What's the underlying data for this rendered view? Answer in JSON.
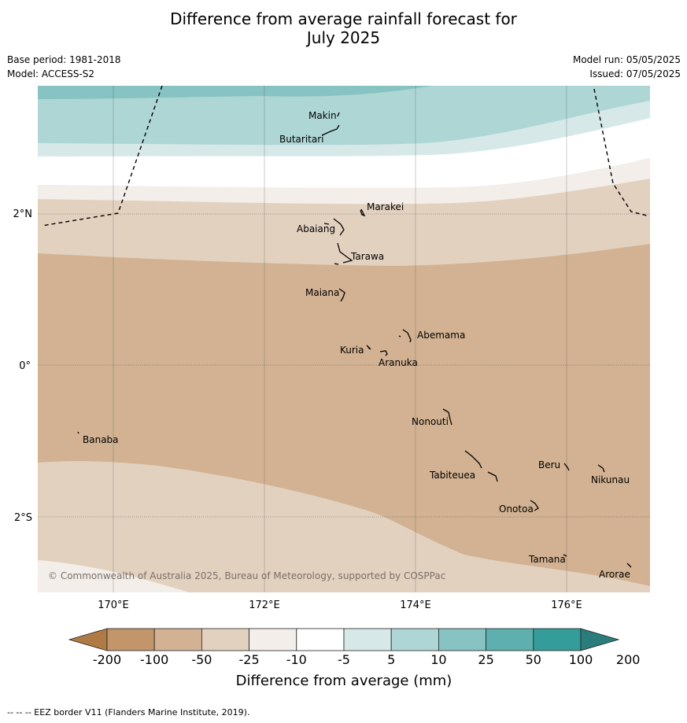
{
  "title": {
    "line1": "Difference from average rainfall forecast for",
    "line2": "July 2025"
  },
  "meta": {
    "base_period": "Base period: 1981-2018",
    "model": "Model: ACCESS-S2",
    "model_run": "Model run: 05/05/2025",
    "issued": "Issued: 07/05/2025"
  },
  "map": {
    "lon_range": [
      169,
      177.1
    ],
    "lat_range": [
      -3,
      3.7
    ],
    "lon_ticks": [
      {
        "value": 170,
        "label": "170°E"
      },
      {
        "value": 172,
        "label": "172°E"
      },
      {
        "value": 174,
        "label": "174°E"
      },
      {
        "value": 176,
        "label": "176°E"
      }
    ],
    "lat_ticks": [
      {
        "value": 2,
        "label": "2°N"
      },
      {
        "value": 0,
        "label": "0°"
      },
      {
        "value": -2,
        "label": "2°S"
      }
    ],
    "islands": [
      {
        "name": "Makin"
      },
      {
        "name": "Butaritari"
      },
      {
        "name": "Marakei"
      },
      {
        "name": "Abaiang"
      },
      {
        "name": "Tarawa"
      },
      {
        "name": "Maiana"
      },
      {
        "name": "Abemama"
      },
      {
        "name": "Kuria"
      },
      {
        "name": "Aranuka"
      },
      {
        "name": "Nonouti"
      },
      {
        "name": "Banaba"
      },
      {
        "name": "Tabiteuea"
      },
      {
        "name": "Beru"
      },
      {
        "name": "Nikunau"
      },
      {
        "name": "Onotoa"
      },
      {
        "name": "Tamana"
      },
      {
        "name": "Arorae"
      }
    ],
    "copyright": "© Commonwealth of Australia 2025, Bureau of Meteorology, supported by COSPPac"
  },
  "legend": {
    "title": "Difference from average (mm)",
    "labels": [
      "-200",
      "-100",
      "-50",
      "-25",
      "-10",
      "-5",
      "5",
      "10",
      "25",
      "50",
      "100",
      "200"
    ],
    "colors": [
      "#b07a44",
      "#c3956a",
      "#d2b292",
      "#e3d1c0",
      "#f3eee9",
      "#ffffff",
      "#d6e9e8",
      "#aed6d5",
      "#86c3c2",
      "#5eb0ae",
      "#349c99",
      "#2a7d7a"
    ]
  },
  "footer": "--  --  -- EEZ border V11 (Flanders Marine Institute, 2019)."
}
